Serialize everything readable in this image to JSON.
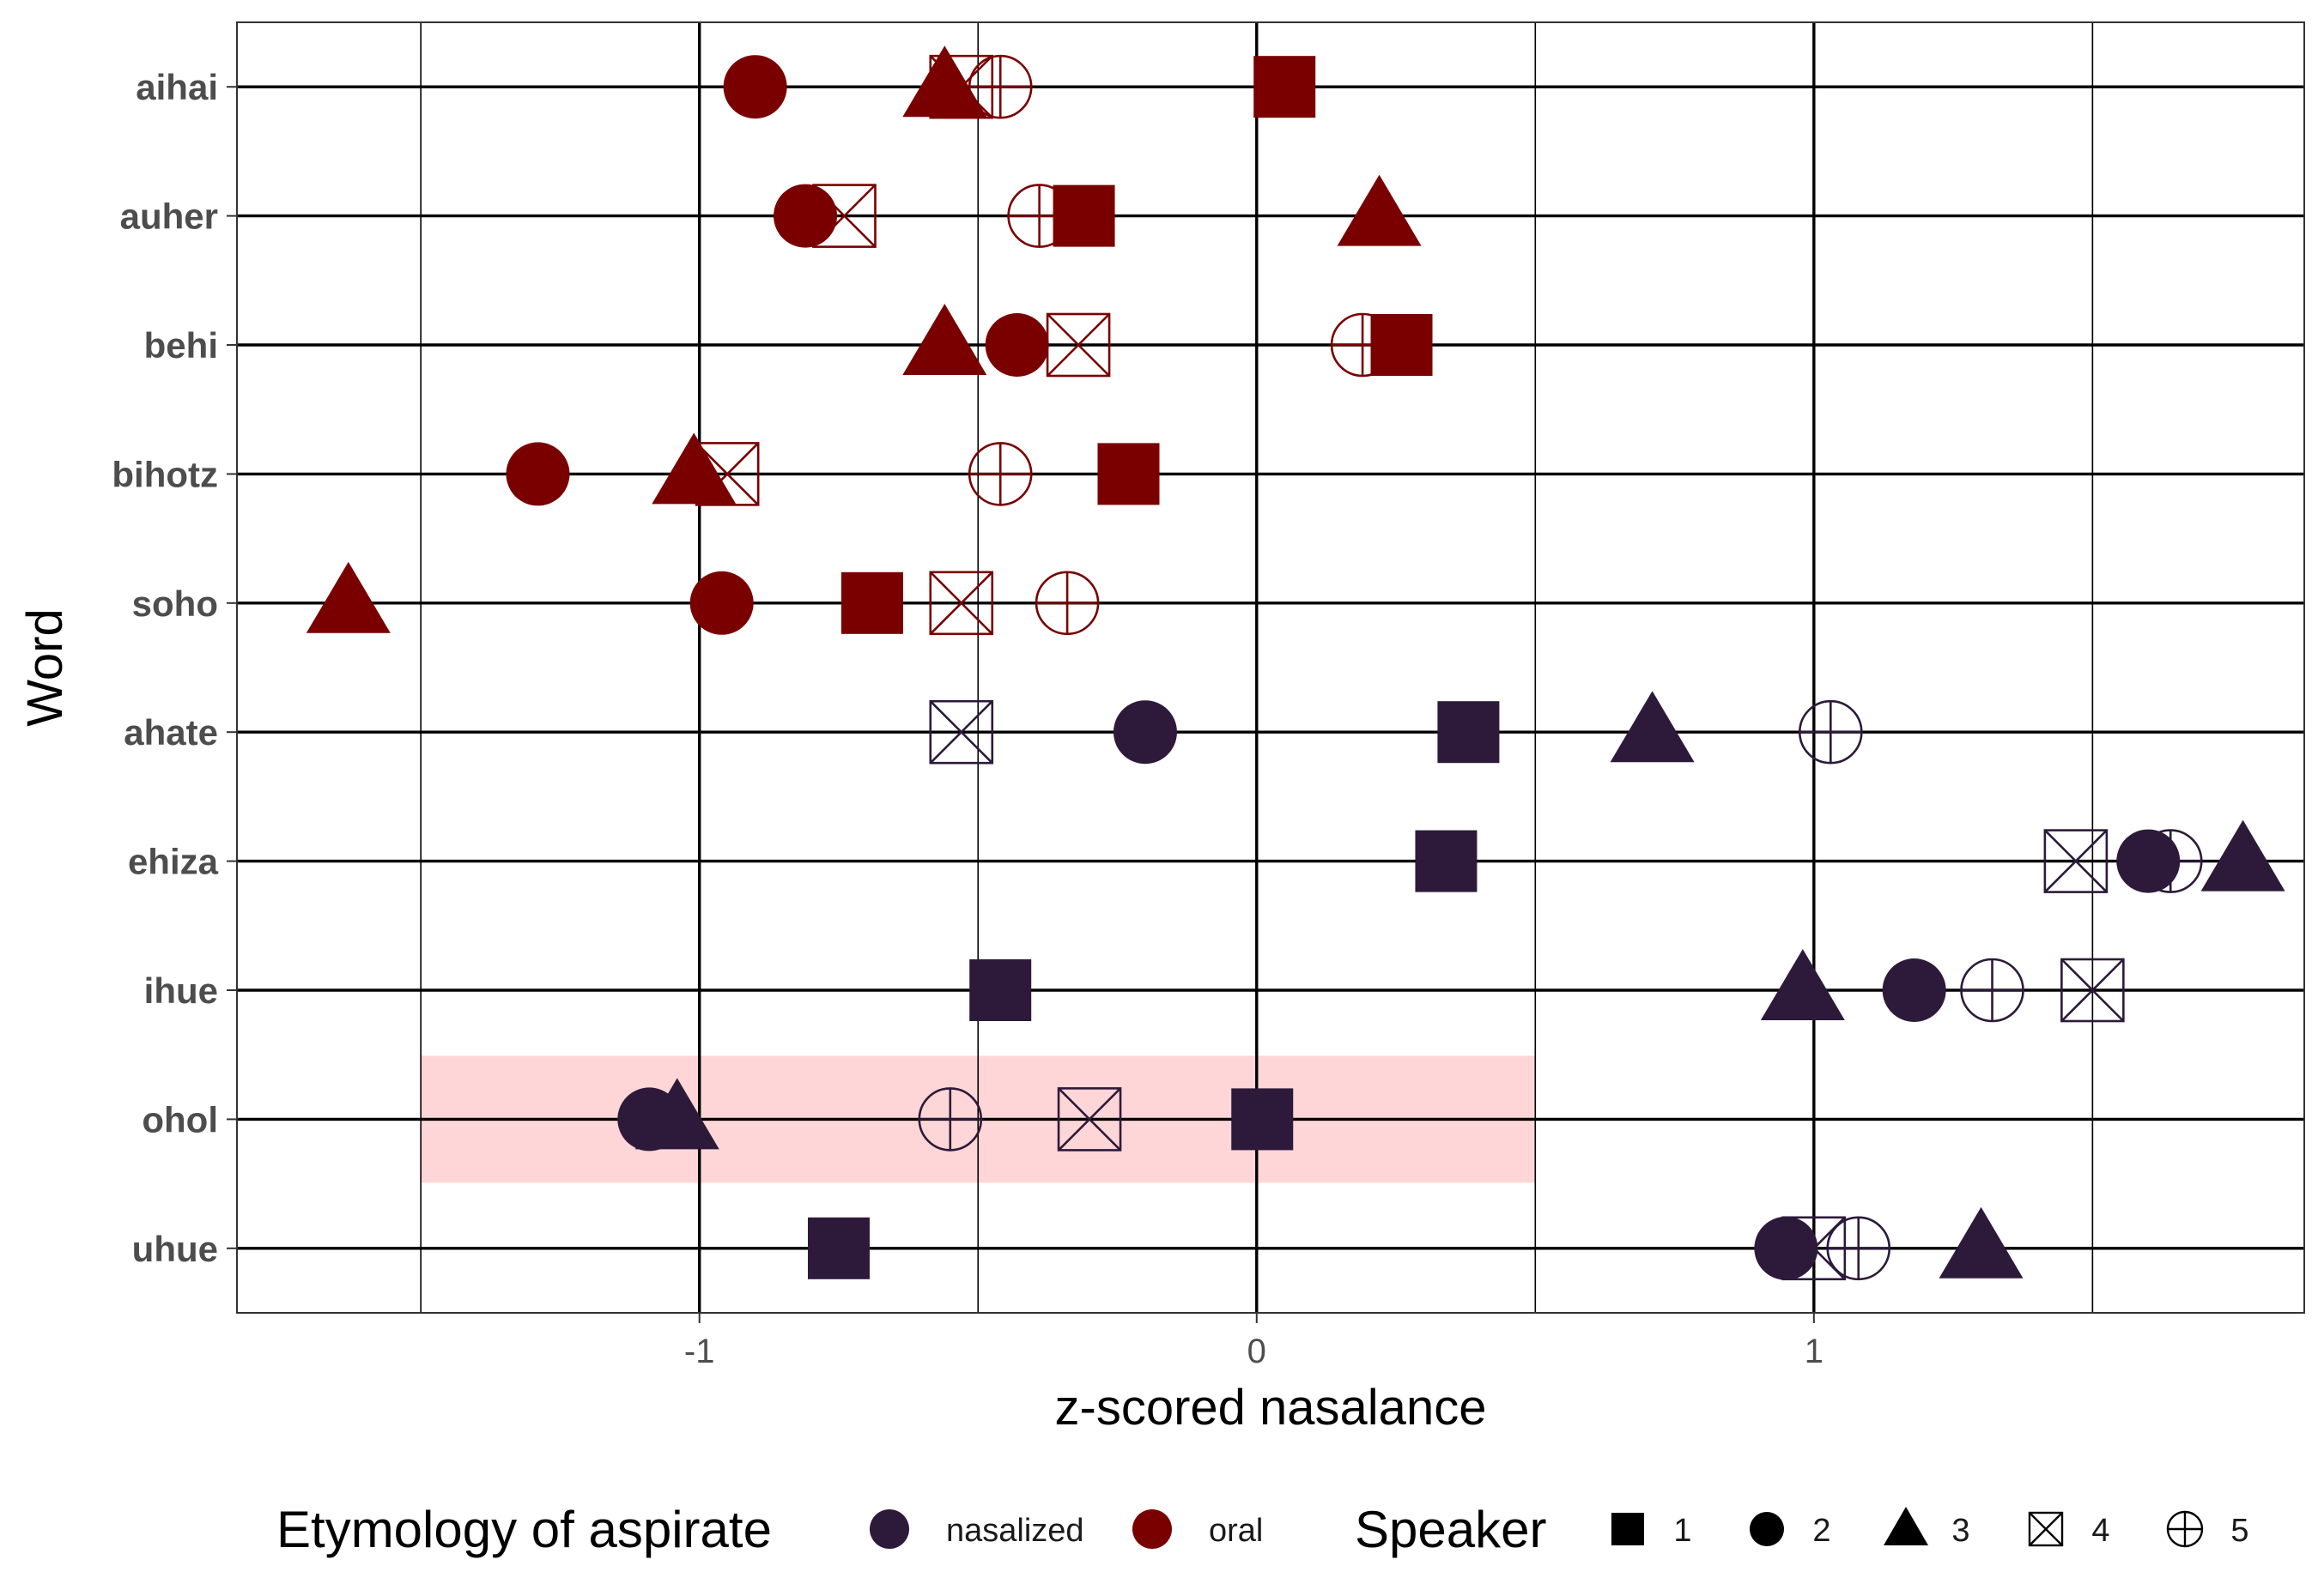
{
  "chart_data": {
    "type": "scatter",
    "xlabel": "z-scored nasalance",
    "ylabel": "Word",
    "xlim": [
      -1.83,
      1.88
    ],
    "xticks": [
      -1,
      0,
      1
    ],
    "xtick_labels": [
      "-1",
      "0",
      "1"
    ],
    "categories": [
      "aihai",
      "auher",
      "behi",
      "bihotz",
      "soho",
      "ahate",
      "ehiza",
      "ihue",
      "ohol",
      "uhue"
    ],
    "highlight": {
      "category": "ohol",
      "x_range": [
        -1.5,
        0.5
      ],
      "color": "#ffd6d7"
    },
    "grid": true,
    "colors": {
      "nasalized": "#2d1a3a",
      "oral": "#7a0000"
    },
    "legend": {
      "position": "bottom",
      "etymology_title": "Etymology of aspirate",
      "etymology_items": [
        "nasalized",
        "oral"
      ],
      "speaker_title": "Speaker",
      "speaker_items": [
        "1",
        "2",
        "3",
        "4",
        "5"
      ]
    },
    "series": [
      {
        "word": "aihai",
        "etymology": "oral",
        "points": {
          "1": 0.05,
          "2": -0.9,
          "3": -0.56,
          "4": -0.53,
          "5": -0.46
        }
      },
      {
        "word": "auher",
        "etymology": "oral",
        "points": {
          "1": -0.31,
          "2": -0.81,
          "3": 0.22,
          "4": -0.74,
          "5": -0.39
        }
      },
      {
        "word": "behi",
        "etymology": "oral",
        "points": {
          "1": 0.26,
          "2": -0.43,
          "3": -0.56,
          "4": -0.32,
          "5": 0.19
        }
      },
      {
        "word": "bihotz",
        "etymology": "oral",
        "points": {
          "1": -0.23,
          "2": -1.29,
          "3": -1.01,
          "4": -0.95,
          "5": -0.46
        }
      },
      {
        "word": "soho",
        "etymology": "oral",
        "points": {
          "1": -0.69,
          "2": -0.96,
          "3": -1.63,
          "4": -0.53,
          "5": -0.34
        }
      },
      {
        "word": "ahate",
        "etymology": "nasalized",
        "points": {
          "1": 0.38,
          "2": -0.2,
          "3": 0.71,
          "4": -0.53,
          "5": 1.03
        }
      },
      {
        "word": "ehiza",
        "etymology": "nasalized",
        "points": {
          "1": 0.34,
          "2": 1.6,
          "3": 1.77,
          "4": 1.47,
          "5": 1.64
        }
      },
      {
        "word": "ihue",
        "etymology": "nasalized",
        "points": {
          "1": -0.46,
          "2": 1.18,
          "3": 0.98,
          "4": 1.5,
          "5": 1.32
        }
      },
      {
        "word": "ohol",
        "etymology": "nasalized",
        "points": {
          "1": 0.01,
          "2": -1.09,
          "3": -1.04,
          "4": -0.3,
          "5": -0.55
        }
      },
      {
        "word": "uhue",
        "etymology": "nasalized",
        "points": {
          "1": -0.75,
          "2": 0.95,
          "3": 1.3,
          "4": 1.0,
          "5": 1.08
        }
      }
    ]
  }
}
